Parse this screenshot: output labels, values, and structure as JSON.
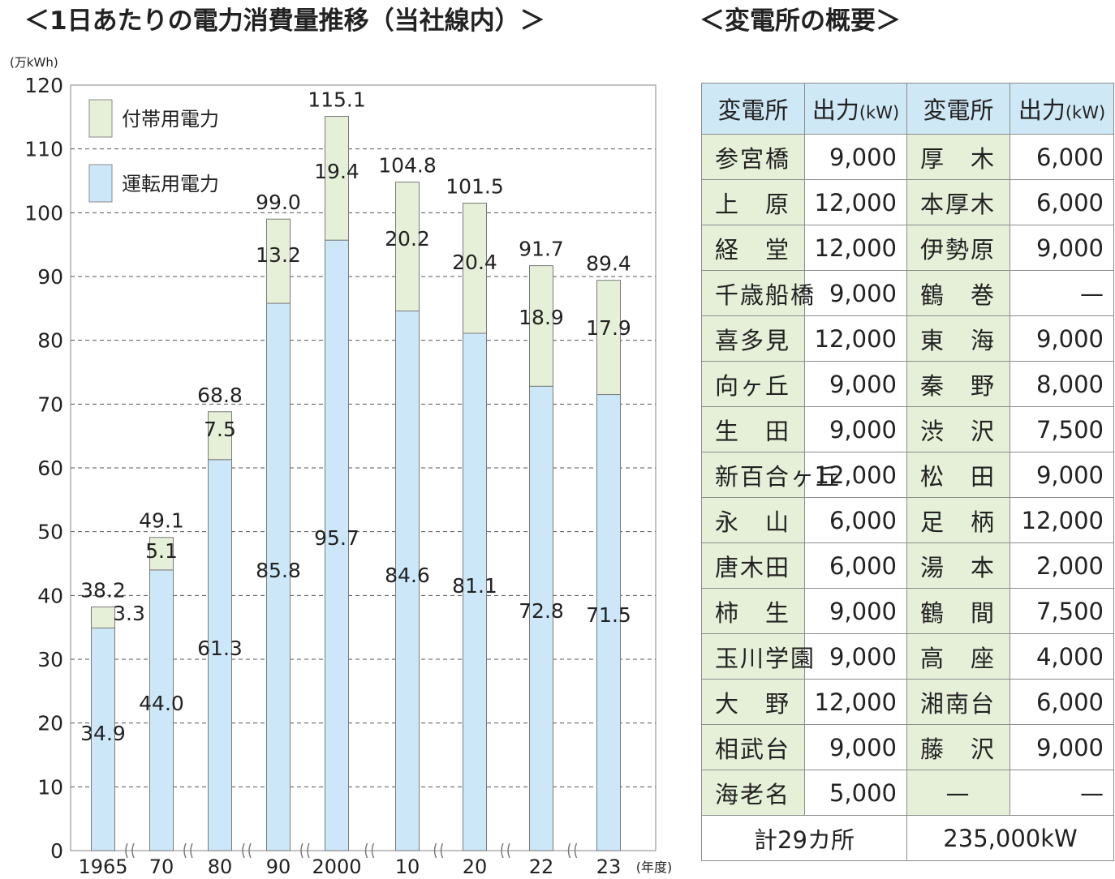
{
  "chart_title": "＜1日あたりの電力消費量推移（当社線内）＞",
  "table_title": "＜変電所の概要＞",
  "chart_data": {
    "type": "bar",
    "stacked": true,
    "title": "＜1日あたりの電力消費量推移（当社線内）＞",
    "ylabel": "(万kWh)",
    "xlabel": "(年度)",
    "ylim": [
      0,
      120
    ],
    "yticks": [
      "0",
      "10",
      "20",
      "30",
      "40",
      "50",
      "60",
      "70",
      "80",
      "90",
      "100",
      "110",
      "120"
    ],
    "grid": true,
    "legend_position": "top-left",
    "categories": [
      "1965",
      "70",
      "80",
      "90",
      "2000",
      "10",
      "20",
      "22",
      "23"
    ],
    "series": [
      {
        "name": "運転用電力",
        "color": "#cce8f8",
        "values": [
          34.9,
          44.0,
          61.3,
          85.8,
          95.7,
          84.6,
          81.1,
          72.8,
          71.5
        ],
        "labels": [
          "34.9",
          "44.0",
          "61.3",
          "85.8",
          "95.7",
          "84.6",
          "81.1",
          "72.8",
          "71.5"
        ]
      },
      {
        "name": "付帯用電力",
        "color": "#e6f0d8",
        "values": [
          3.3,
          5.1,
          7.5,
          13.2,
          19.4,
          20.2,
          20.4,
          18.9,
          17.9
        ],
        "labels": [
          "3.3",
          "5.1",
          "7.5",
          "13.2",
          "19.4",
          "20.2",
          "20.4",
          "18.9",
          "17.9"
        ]
      }
    ],
    "totals": [
      "38.2",
      "49.1",
      "68.8",
      "99.0",
      "115.1",
      "104.8",
      "101.5",
      "91.7",
      "89.4"
    ]
  },
  "table": {
    "headers": [
      "変電所",
      "出力",
      "変電所",
      "出力"
    ],
    "unit": "(kW)",
    "rows": [
      [
        "参宮橋",
        "9,000",
        "厚　木",
        "6,000"
      ],
      [
        "上　原",
        "12,000",
        "本厚木",
        "6,000"
      ],
      [
        "経　堂",
        "12,000",
        "伊勢原",
        "9,000"
      ],
      [
        "千歳船橋",
        "9,000",
        "鶴　巻",
        "—"
      ],
      [
        "喜多見",
        "12,000",
        "東　海",
        "9,000"
      ],
      [
        "向ヶ丘",
        "9,000",
        "秦　野",
        "8,000"
      ],
      [
        "生　田",
        "9,000",
        "渋　沢",
        "7,500"
      ],
      [
        "新百合ヶ丘",
        "12,000",
        "松　田",
        "9,000"
      ],
      [
        "永　山",
        "6,000",
        "足　柄",
        "12,000"
      ],
      [
        "唐木田",
        "6,000",
        "湯　本",
        "2,000"
      ],
      [
        "柿　生",
        "9,000",
        "鶴　間",
        "7,500"
      ],
      [
        "玉川学園",
        "9,000",
        "高　座",
        "4,000"
      ],
      [
        "大　野",
        "12,000",
        "湘南台",
        "6,000"
      ],
      [
        "相武台",
        "9,000",
        "藤　沢",
        "9,000"
      ],
      [
        "海老名",
        "5,000",
        "—",
        "—"
      ]
    ],
    "total_label": "計29カ所",
    "total_value": "235,000kW"
  }
}
